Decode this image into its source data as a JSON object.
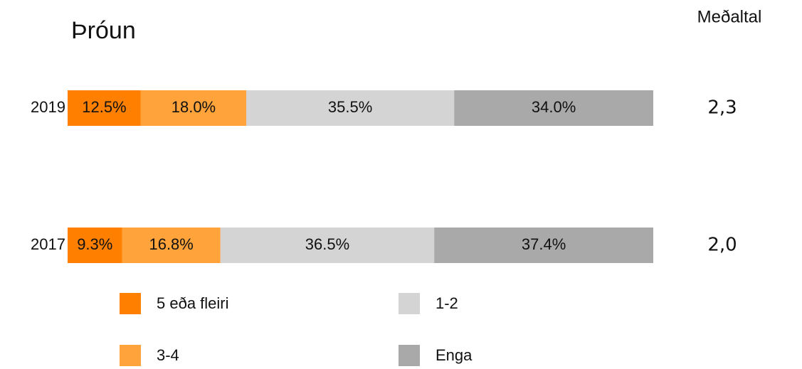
{
  "chart_data": {
    "type": "stacked-bar-horizontal",
    "title": "Þróun",
    "categories": [
      "2019",
      "2017"
    ],
    "series": [
      {
        "name": "5 eða fleiri",
        "color": "#ff7f00",
        "values": [
          12.5,
          9.3
        ],
        "value_labels": [
          "12.5%",
          "9.3%"
        ]
      },
      {
        "name": "3-4",
        "color": "#ffa33a",
        "values": [
          18.0,
          16.8
        ],
        "value_labels": [
          "18.0%",
          "16.8%"
        ]
      },
      {
        "name": "1-2",
        "color": "#d4d4d4",
        "values": [
          35.5,
          36.5
        ],
        "value_labels": [
          "35.5%",
          "36.5%"
        ]
      },
      {
        "name": "Enga",
        "color": "#a9a9a9",
        "values": [
          34.0,
          37.4
        ],
        "value_labels": [
          "34.0%",
          "37.4%"
        ]
      }
    ],
    "xlim": [
      0,
      100
    ],
    "averages": {
      "title": "Meðaltal",
      "values": [
        2.3,
        2.0
      ],
      "value_labels": [
        "2,3",
        "2,0"
      ]
    }
  }
}
